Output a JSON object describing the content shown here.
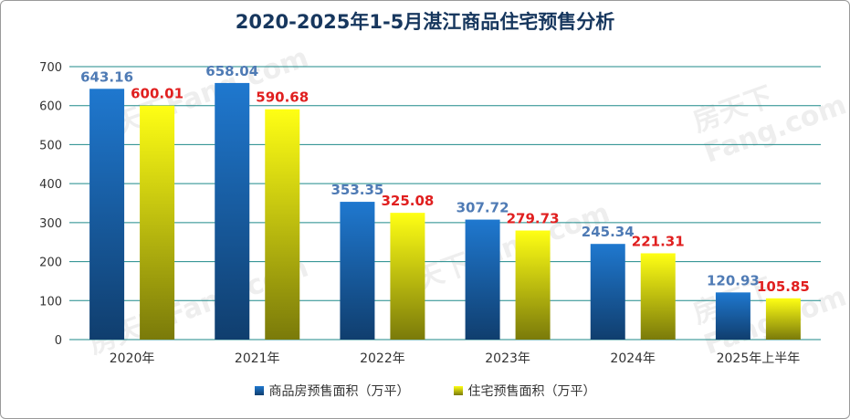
{
  "chart_data": {
    "type": "bar",
    "title": "2020-2025年1-5月湛江商品住宅预售分析",
    "categories": [
      "2020年",
      "2021年",
      "2022年",
      "2023年",
      "2024年",
      "2025年上半年"
    ],
    "series": [
      {
        "name": "商品房预售面积（万平）",
        "values": [
          643.16,
          658.04,
          353.35,
          307.72,
          245.34,
          120.93
        ],
        "color": "#2e75c4",
        "label_color": "#4f7bb5"
      },
      {
        "name": "住宅预售面积（万平）",
        "values": [
          600.01,
          590.68,
          325.08,
          279.73,
          221.31,
          105.85
        ],
        "color": "#f2f200",
        "label_color": "#e01f1f"
      }
    ],
    "ylim": [
      0,
      700
    ],
    "yticks": [
      "0",
      "100",
      "200",
      "300",
      "400",
      "500",
      "600",
      "700"
    ],
    "grid": true,
    "legend": "bottom",
    "watermark": "房天下Fang.com"
  }
}
